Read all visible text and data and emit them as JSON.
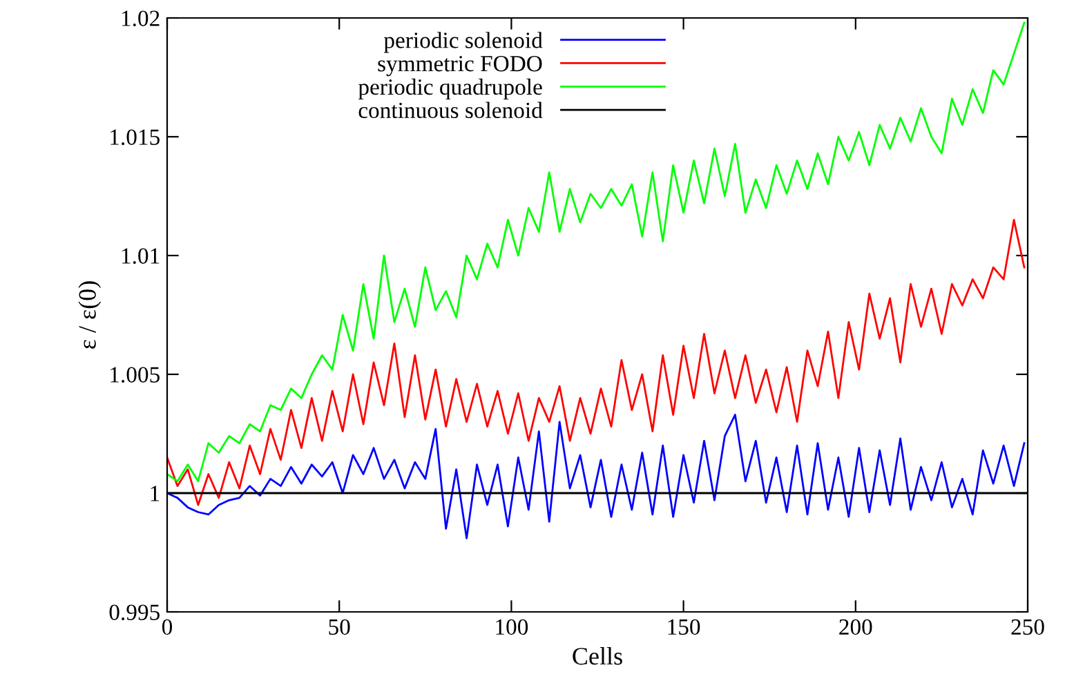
{
  "chart_data": {
    "type": "line",
    "xlabel": "Cells",
    "ylabel": "ε / ε(0)",
    "xlim": [
      0,
      250
    ],
    "ylim": [
      0.995,
      1.02
    ],
    "xticks": [
      0,
      50,
      100,
      150,
      200,
      250
    ],
    "yticks": [
      0.995,
      1,
      1.005,
      1.01,
      1.015,
      1.02
    ],
    "grid": false,
    "legend": "top",
    "line_style": "solid",
    "x": [
      0,
      3,
      6,
      9,
      12,
      15,
      18,
      21,
      24,
      27,
      30,
      33,
      36,
      39,
      42,
      45,
      48,
      51,
      54,
      57,
      60,
      63,
      66,
      69,
      72,
      75,
      78,
      81,
      84,
      87,
      90,
      93,
      96,
      99,
      102,
      105,
      108,
      111,
      114,
      117,
      120,
      123,
      126,
      129,
      132,
      135,
      138,
      141,
      144,
      147,
      150,
      153,
      156,
      159,
      162,
      165,
      168,
      171,
      174,
      177,
      180,
      183,
      186,
      189,
      192,
      195,
      198,
      201,
      204,
      207,
      210,
      213,
      216,
      219,
      222,
      225,
      228,
      231,
      234,
      237,
      240,
      243,
      246,
      249
    ],
    "series": [
      {
        "name": "periodic solenoid",
        "color": "#0000ff",
        "values": [
          1.0,
          0.9998,
          0.9994,
          0.9992,
          0.9991,
          0.9995,
          0.9997,
          0.9998,
          1.0003,
          0.9999,
          1.0006,
          1.0003,
          1.0011,
          1.0004,
          1.0012,
          1.0007,
          1.0013,
          1.0,
          1.0016,
          1.0008,
          1.0019,
          1.0006,
          1.0014,
          1.0002,
          1.0013,
          1.0006,
          1.0027,
          0.9985,
          1.001,
          0.9981,
          1.0012,
          0.9995,
          1.0012,
          0.9986,
          1.0015,
          0.9993,
          1.0026,
          0.9988,
          1.003,
          1.0002,
          1.0016,
          0.9994,
          1.0014,
          0.999,
          1.0012,
          0.9993,
          1.0017,
          0.9991,
          1.002,
          0.999,
          1.0016,
          0.9996,
          1.0022,
          0.9997,
          1.0024,
          1.0033,
          1.0005,
          1.0022,
          0.9996,
          1.0015,
          0.9992,
          1.002,
          0.9991,
          1.0021,
          0.9993,
          1.0015,
          0.999,
          1.0019,
          0.9992,
          1.0018,
          0.9995,
          1.0023,
          0.9993,
          1.0011,
          0.9997,
          1.0013,
          0.9994,
          1.0006,
          0.9991,
          1.0018,
          1.0004,
          1.002,
          1.0003,
          1.0021
        ]
      },
      {
        "name": "symmetric FODO",
        "color": "#ff0000",
        "values": [
          1.0015,
          1.0003,
          1.001,
          0.9995,
          1.0008,
          0.9998,
          1.0013,
          1.0002,
          1.002,
          1.0008,
          1.0027,
          1.0014,
          1.0035,
          1.0019,
          1.004,
          1.0022,
          1.0043,
          1.0026,
          1.005,
          1.0029,
          1.0055,
          1.0037,
          1.0063,
          1.0032,
          1.0058,
          1.0031,
          1.0052,
          1.0028,
          1.0048,
          1.003,
          1.0046,
          1.0028,
          1.0043,
          1.0025,
          1.0042,
          1.0022,
          1.004,
          1.003,
          1.0045,
          1.0022,
          1.004,
          1.0025,
          1.0044,
          1.0028,
          1.0056,
          1.0035,
          1.005,
          1.0026,
          1.0058,
          1.0033,
          1.0062,
          1.004,
          1.0067,
          1.0042,
          1.006,
          1.004,
          1.0058,
          1.0038,
          1.0052,
          1.0034,
          1.0053,
          1.003,
          1.006,
          1.0045,
          1.0068,
          1.004,
          1.0072,
          1.0052,
          1.0084,
          1.0065,
          1.0082,
          1.0055,
          1.0088,
          1.007,
          1.0086,
          1.0067,
          1.0088,
          1.0079,
          1.009,
          1.0082,
          1.0095,
          1.009,
          1.0115,
          1.0095
        ]
      },
      {
        "name": "periodic quadrupole",
        "color": "#00ff00",
        "values": [
          1.0008,
          1.0005,
          1.0012,
          1.0005,
          1.0021,
          1.0017,
          1.0024,
          1.0021,
          1.0029,
          1.0026,
          1.0037,
          1.0035,
          1.0044,
          1.004,
          1.005,
          1.0058,
          1.0052,
          1.0075,
          1.006,
          1.0088,
          1.0065,
          1.01,
          1.0072,
          1.0086,
          1.007,
          1.0095,
          1.0077,
          1.0085,
          1.0074,
          1.01,
          1.009,
          1.0105,
          1.0095,
          1.0115,
          1.01,
          1.012,
          1.011,
          1.0135,
          1.011,
          1.0128,
          1.0114,
          1.0126,
          1.012,
          1.0128,
          1.0121,
          1.013,
          1.0108,
          1.0135,
          1.0106,
          1.0138,
          1.0118,
          1.014,
          1.0122,
          1.0145,
          1.0125,
          1.0147,
          1.0118,
          1.0132,
          1.012,
          1.0138,
          1.0126,
          1.014,
          1.0128,
          1.0143,
          1.013,
          1.015,
          1.014,
          1.0152,
          1.0138,
          1.0155,
          1.0145,
          1.0158,
          1.0148,
          1.0162,
          1.015,
          1.0143,
          1.0166,
          1.0155,
          1.017,
          1.016,
          1.0178,
          1.0172,
          1.0185,
          1.0198
        ]
      },
      {
        "name": "continuous solenoid",
        "color": "#000000",
        "x": [
          0,
          250
        ],
        "values": [
          1,
          1
        ]
      }
    ]
  }
}
